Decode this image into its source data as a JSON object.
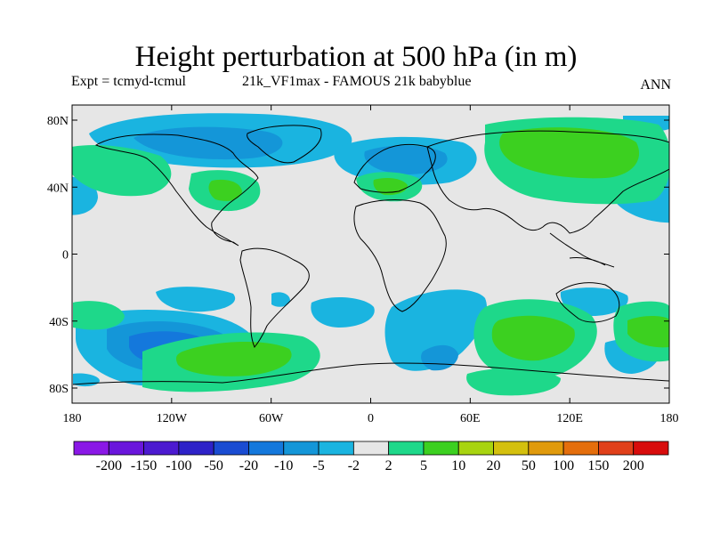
{
  "header": {
    "title": "Height perturbation at 500 hPa (in m)",
    "left_label": "Expt = tcmyd-tcmul",
    "center_label": "21k_VF1max - FAMOUS 21k babyblue",
    "right_label": "ANN"
  },
  "axes": {
    "y_ticks": [
      "80N",
      "40N",
      "0",
      "40S",
      "80S"
    ],
    "x_ticks": [
      "180",
      "120W",
      "60W",
      "0",
      "60E",
      "120E",
      "180"
    ]
  },
  "colorbar": {
    "colors": [
      "#8a18e6",
      "#6a16dc",
      "#4c1ad0",
      "#2e22c8",
      "#1a4cd2",
      "#1478dc",
      "#1496d8",
      "#1ab4e0",
      "#e6e6e6",
      "#1ed88a",
      "#3cd020",
      "#a8d410",
      "#d4c00e",
      "#e09a0c",
      "#e46e0c",
      "#e0401a",
      "#d80c0c"
    ],
    "labels": [
      "-200",
      "-150",
      "-100",
      "-50",
      "-20",
      "-10",
      "-5",
      "-2",
      "2",
      "5",
      "10",
      "20",
      "50",
      "100",
      "150",
      "200"
    ]
  },
  "map": {
    "background": "#e6e6e6",
    "fill_colors": {
      "neg_weak": "#1ab4e0",
      "neg_mid": "#1496d8",
      "neg_strong": "#1478dc",
      "pos_weak": "#1ed88a",
      "pos_mid": "#3cd020"
    }
  }
}
